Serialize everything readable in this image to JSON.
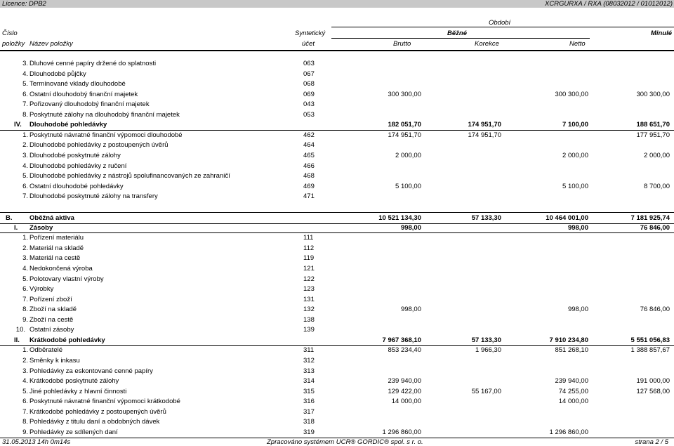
{
  "header": {
    "licence": "Licence: DPB2",
    "report_code": "XCRGURXA / RXA  (08032012 / 01012012)",
    "period_label": "Období",
    "col_number_1": "Číslo",
    "col_number_2": "položky",
    "col_name": "Název položky",
    "col_account_1": "Syntetický",
    "col_account_2": "účet",
    "col_current": "Běžné",
    "col_previous": "Minulé",
    "col_brutto": "Brutto",
    "col_korekce": "Korekce",
    "col_netto": "Netto"
  },
  "rows": [
    {
      "kind": "item",
      "no": "3.",
      "name": "Dluhové cenné papíry držené do splatnosti",
      "acct": "063",
      "brutto": "",
      "korekce": "",
      "netto": "",
      "prev": ""
    },
    {
      "kind": "item",
      "no": "4.",
      "name": "Dlouhodobé půjčky",
      "acct": "067",
      "brutto": "",
      "korekce": "",
      "netto": "",
      "prev": ""
    },
    {
      "kind": "item",
      "no": "5.",
      "name": "Termínované vklady dlouhodobé",
      "acct": "068",
      "brutto": "",
      "korekce": "",
      "netto": "",
      "prev": ""
    },
    {
      "kind": "item",
      "no": "6.",
      "name": "Ostatní dlouhodobý finanční majetek",
      "acct": "069",
      "brutto": "300 300,00",
      "korekce": "",
      "netto": "300 300,00",
      "prev": "300 300,00"
    },
    {
      "kind": "item",
      "no": "7.",
      "name": "Pořizovaný dlouhodobý finanční majetek",
      "acct": "043",
      "brutto": "",
      "korekce": "",
      "netto": "",
      "prev": ""
    },
    {
      "kind": "item",
      "no": "8.",
      "name": "Poskytnuté zálohy na dlouhodobý finanční majetek",
      "acct": "053",
      "brutto": "",
      "korekce": "",
      "netto": "",
      "prev": ""
    },
    {
      "kind": "section",
      "no": "IV.",
      "name": "Dlouhodobé pohledávky",
      "acct": "",
      "brutto": "182 051,70",
      "korekce": "174 951,70",
      "netto": "7 100,00",
      "prev": "188 651,70"
    },
    {
      "kind": "item",
      "no": "1.",
      "name": "Poskytnuté návratné finanční výpomoci dlouhodobé",
      "acct": "462",
      "brutto": "174 951,70",
      "korekce": "174 951,70",
      "netto": "",
      "prev": "177 951,70"
    },
    {
      "kind": "item",
      "no": "2.",
      "name": "Dlouhodobé pohledávky z postoupených úvěrů",
      "acct": "464",
      "brutto": "",
      "korekce": "",
      "netto": "",
      "prev": ""
    },
    {
      "kind": "item",
      "no": "3.",
      "name": "Dlouhodobé poskytnuté zálohy",
      "acct": "465",
      "brutto": "2 000,00",
      "korekce": "",
      "netto": "2 000,00",
      "prev": "2 000,00"
    },
    {
      "kind": "item",
      "no": "4.",
      "name": "Dlouhodobé pohledávky z ručení",
      "acct": "466",
      "brutto": "",
      "korekce": "",
      "netto": "",
      "prev": ""
    },
    {
      "kind": "item",
      "no": "5.",
      "name": "Dlouhodobé pohledávky z nástrojů spolufinancovaných ze zahraničí",
      "acct": "468",
      "brutto": "",
      "korekce": "",
      "netto": "",
      "prev": ""
    },
    {
      "kind": "item",
      "no": "6.",
      "name": "Ostatní dlouhodobé pohledávky",
      "acct": "469",
      "brutto": "5 100,00",
      "korekce": "",
      "netto": "5 100,00",
      "prev": "8 700,00"
    },
    {
      "kind": "item",
      "no": "7.",
      "name": "Dlouhodobé poskytnuté zálohy na transfery",
      "acct": "471",
      "brutto": "",
      "korekce": "",
      "netto": "",
      "prev": ""
    },
    {
      "kind": "gap"
    },
    {
      "kind": "major",
      "no": "B.",
      "name": "Oběžná aktiva",
      "acct": "",
      "brutto": "10 521 134,30",
      "korekce": "57 133,30",
      "netto": "10 464 001,00",
      "prev": "7 181 925,74"
    },
    {
      "kind": "section",
      "no": "I.",
      "name": "Zásoby",
      "acct": "",
      "brutto": "998,00",
      "korekce": "",
      "netto": "998,00",
      "prev": "76 846,00"
    },
    {
      "kind": "item",
      "no": "1.",
      "name": "Pořízení materiálu",
      "acct": "111",
      "brutto": "",
      "korekce": "",
      "netto": "",
      "prev": ""
    },
    {
      "kind": "item",
      "no": "2.",
      "name": "Materiál na skladě",
      "acct": "112",
      "brutto": "",
      "korekce": "",
      "netto": "",
      "prev": ""
    },
    {
      "kind": "item",
      "no": "3.",
      "name": "Materiál na cestě",
      "acct": "119",
      "brutto": "",
      "korekce": "",
      "netto": "",
      "prev": ""
    },
    {
      "kind": "item",
      "no": "4.",
      "name": "Nedokončená výroba",
      "acct": "121",
      "brutto": "",
      "korekce": "",
      "netto": "",
      "prev": ""
    },
    {
      "kind": "item",
      "no": "5.",
      "name": "Polotovary vlastní výroby",
      "acct": "122",
      "brutto": "",
      "korekce": "",
      "netto": "",
      "prev": ""
    },
    {
      "kind": "item",
      "no": "6.",
      "name": "Výrobky",
      "acct": "123",
      "brutto": "",
      "korekce": "",
      "netto": "",
      "prev": ""
    },
    {
      "kind": "item",
      "no": "7.",
      "name": "Pořízení zboží",
      "acct": "131",
      "brutto": "",
      "korekce": "",
      "netto": "",
      "prev": ""
    },
    {
      "kind": "item",
      "no": "8.",
      "name": "Zboží na skladě",
      "acct": "132",
      "brutto": "998,00",
      "korekce": "",
      "netto": "998,00",
      "prev": "76 846,00"
    },
    {
      "kind": "item",
      "no": "9.",
      "name": "Zboží na cestě",
      "acct": "138",
      "brutto": "",
      "korekce": "",
      "netto": "",
      "prev": ""
    },
    {
      "kind": "item",
      "no": "10.",
      "name": "Ostatní zásoby",
      "acct": "139",
      "brutto": "",
      "korekce": "",
      "netto": "",
      "prev": ""
    },
    {
      "kind": "section",
      "no": "II.",
      "name": "Krátkodobé pohledávky",
      "acct": "",
      "brutto": "7 967 368,10",
      "korekce": "57 133,30",
      "netto": "7 910 234,80",
      "prev": "5 551 056,83"
    },
    {
      "kind": "item",
      "no": "1.",
      "name": "Odběratelé",
      "acct": "311",
      "brutto": "853 234,40",
      "korekce": "1 966,30",
      "netto": "851 268,10",
      "prev": "1 388 857,67"
    },
    {
      "kind": "item",
      "no": "2.",
      "name": "Směnky k inkasu",
      "acct": "312",
      "brutto": "",
      "korekce": "",
      "netto": "",
      "prev": ""
    },
    {
      "kind": "item",
      "no": "3.",
      "name": "Pohledávky za eskontované cenné papíry",
      "acct": "313",
      "brutto": "",
      "korekce": "",
      "netto": "",
      "prev": ""
    },
    {
      "kind": "item",
      "no": "4.",
      "name": "Krátkodobé poskytnuté zálohy",
      "acct": "314",
      "brutto": "239 940,00",
      "korekce": "",
      "netto": "239 940,00",
      "prev": "191 000,00"
    },
    {
      "kind": "item",
      "no": "5.",
      "name": "Jiné pohledávky z hlavní činnosti",
      "acct": "315",
      "brutto": "129 422,00",
      "korekce": "55 167,00",
      "netto": "74 255,00",
      "prev": "127 568,00"
    },
    {
      "kind": "item",
      "no": "6.",
      "name": "Poskytnuté návratné finanční výpomoci krátkodobé",
      "acct": "316",
      "brutto": "14 000,00",
      "korekce": "",
      "netto": "14 000,00",
      "prev": ""
    },
    {
      "kind": "item",
      "no": "7.",
      "name": "Krátkodobé pohledávky z postoupených úvěrů",
      "acct": "317",
      "brutto": "",
      "korekce": "",
      "netto": "",
      "prev": ""
    },
    {
      "kind": "item",
      "no": "8.",
      "name": "Pohledávky z titulu daní a obdobných dávek",
      "acct": "318",
      "brutto": "",
      "korekce": "",
      "netto": "",
      "prev": ""
    },
    {
      "kind": "item",
      "no": "9.",
      "name": "Pohledávky ze sdílených daní",
      "acct": "319",
      "brutto": "1 296 860,00",
      "korekce": "",
      "netto": "1 296 860,00",
      "prev": ""
    }
  ],
  "footer": {
    "timestamp": "31.05.2013 14h 0m14s",
    "processed_by": "Zpracováno systémem UCR® GORDIC® spol. s  r. o.",
    "page": "strana 2 / 5"
  }
}
